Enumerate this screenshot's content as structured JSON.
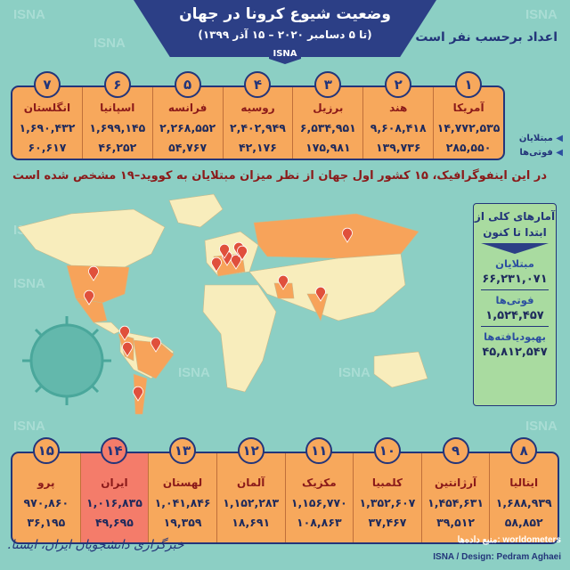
{
  "header": {
    "title": "وضعیت شیوع کرونا در جهان",
    "date_range": "(تا ۵ دسامبر ۲۰۲۰ – ۱۵ آذر ۱۳۹۹)",
    "isna_tag": "ISNA",
    "units_note": "اعداد برحسب نفر است"
  },
  "watermark": "ISNA",
  "row_labels": {
    "cases": "مبتلایان",
    "deaths": "فوتی‌ها"
  },
  "top_countries": [
    {
      "rank": "۱",
      "name": "آمریکا",
      "cases": "۱۴,۷۷۲,۵۳۵",
      "deaths": "۲۸۵,۵۵۰"
    },
    {
      "rank": "۲",
      "name": "هند",
      "cases": "۹,۶۰۸,۴۱۸",
      "deaths": "۱۳۹,۷۳۶"
    },
    {
      "rank": "۳",
      "name": "برزیل",
      "cases": "۶,۵۳۴,۹۵۱",
      "deaths": "۱۷۵,۹۸۱"
    },
    {
      "rank": "۴",
      "name": "روسیه",
      "cases": "۲,۴۰۲,۹۴۹",
      "deaths": "۴۲,۱۷۶"
    },
    {
      "rank": "۵",
      "name": "فرانسه",
      "cases": "۲,۲۶۸,۵۵۲",
      "deaths": "۵۴,۷۶۷"
    },
    {
      "rank": "۶",
      "name": "اسپانیا",
      "cases": "۱,۶۹۹,۱۴۵",
      "deaths": "۴۶,۲۵۲"
    },
    {
      "rank": "۷",
      "name": "انگلستان",
      "cases": "۱,۶۹۰,۴۳۲",
      "deaths": "۶۰,۶۱۷"
    }
  ],
  "bottom_countries": [
    {
      "rank": "۸",
      "name": "ایتالیا",
      "cases": "۱,۶۸۸,۹۳۹",
      "deaths": "۵۸,۸۵۲"
    },
    {
      "rank": "۹",
      "name": "آرژانتین",
      "cases": "۱,۴۵۴,۶۳۱",
      "deaths": "۳۹,۵۱۲"
    },
    {
      "rank": "۱۰",
      "name": "کلمبیا",
      "cases": "۱,۳۵۲,۶۰۷",
      "deaths": "۳۷,۴۶۷"
    },
    {
      "rank": "۱۱",
      "name": "مکزیک",
      "cases": "۱,۱۵۶,۷۷۰",
      "deaths": "۱۰۸,۸۶۳"
    },
    {
      "rank": "۱۲",
      "name": "آلمان",
      "cases": "۱,۱۵۲,۲۸۳",
      "deaths": "۱۸,۶۹۱"
    },
    {
      "rank": "۱۳",
      "name": "لهستان",
      "cases": "۱,۰۴۱,۸۴۶",
      "deaths": "۱۹,۳۵۹"
    },
    {
      "rank": "۱۴",
      "name": "ایران",
      "cases": "۱,۰۱۶,۸۳۵",
      "deaths": "۴۹,۶۹۵",
      "highlight": true
    },
    {
      "rank": "۱۵",
      "name": "پرو",
      "cases": "۹۷۰,۸۶۰",
      "deaths": "۳۶,۱۹۵"
    }
  ],
  "intro_line": "در این اینفوگرافیک، ۱۵ کشور اول جهان از نظر میزان مبتلایان به کووید–۱۹ مشخص شده است",
  "totals": {
    "heading_1": "آمارهای کلی از",
    "heading_2": "ابتدا تا کنون",
    "cases_label": "مبتلایان",
    "cases": "۶۶,۲۳۱,۰۷۱",
    "deaths_label": "فوتی‌ها",
    "deaths": "۱,۵۲۴,۴۵۷",
    "recovered_label": "بهبودیافته‌ها",
    "recovered": "۴۵,۸۱۲,۵۴۷"
  },
  "footer": {
    "source": "منبع داده‌ها: worldometers",
    "design": "ISNA / Design: Pedram Aghaei",
    "logo_text": "خبرگزاری دانشجویان ایران، ایسنا."
  },
  "colors": {
    "background": "#8ccfc4",
    "navy": "#2c3f86",
    "orange": "#f7a85c",
    "iran_highlight": "#f47c6a",
    "land": "#f8edbc",
    "top15_land": "#f7a35a",
    "marker": "#e0503c",
    "stats_box": "#a9dba0"
  }
}
